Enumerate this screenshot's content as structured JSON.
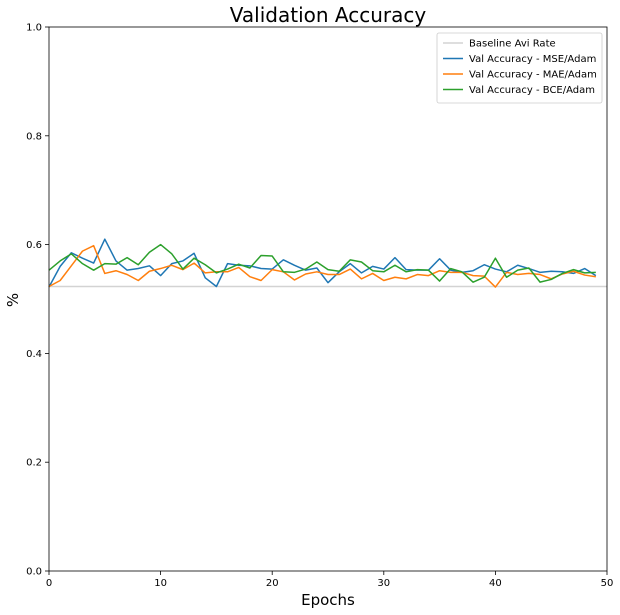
{
  "chart_data": {
    "type": "line",
    "title": "Validation Accuracy",
    "xlabel": "Epochs",
    "ylabel": "%",
    "xlim": [
      0,
      50
    ],
    "ylim": [
      0.0,
      1.0
    ],
    "xticks": [
      0,
      10,
      20,
      30,
      40,
      50
    ],
    "yticks": [
      0.0,
      0.2,
      0.4,
      0.6,
      0.8,
      1.0
    ],
    "grid": false,
    "legend_position": "top-right",
    "baseline": {
      "name": "Baseline Avi Rate",
      "value": 0.523,
      "color": "#d3d3d3"
    },
    "x": [
      0,
      1,
      2,
      3,
      4,
      5,
      6,
      7,
      8,
      9,
      10,
      11,
      12,
      13,
      14,
      15,
      16,
      17,
      18,
      19,
      20,
      21,
      22,
      23,
      24,
      25,
      26,
      27,
      28,
      29,
      30,
      31,
      32,
      33,
      34,
      35,
      36,
      37,
      38,
      39,
      40,
      41,
      42,
      43,
      44,
      45,
      46,
      47,
      48,
      49
    ],
    "series": [
      {
        "name": "Val Accuracy - MSE/Adam",
        "color": "#1f77b4",
        "values": [
          0.522,
          0.56,
          0.585,
          0.575,
          0.566,
          0.61,
          0.57,
          0.553,
          0.556,
          0.561,
          0.543,
          0.565,
          0.57,
          0.584,
          0.539,
          0.523,
          0.565,
          0.562,
          0.561,
          0.556,
          0.555,
          0.572,
          0.562,
          0.553,
          0.557,
          0.53,
          0.55,
          0.565,
          0.548,
          0.56,
          0.555,
          0.576,
          0.554,
          0.553,
          0.553,
          0.574,
          0.553,
          0.549,
          0.552,
          0.563,
          0.555,
          0.55,
          0.562,
          0.556,
          0.549,
          0.551,
          0.55,
          0.547,
          0.556,
          0.543
        ]
      },
      {
        "name": "Val Accuracy - MAE/Adam",
        "color": "#ff7f0e",
        "values": [
          0.523,
          0.534,
          0.561,
          0.588,
          0.598,
          0.547,
          0.552,
          0.545,
          0.534,
          0.551,
          0.556,
          0.562,
          0.554,
          0.566,
          0.548,
          0.55,
          0.55,
          0.558,
          0.541,
          0.534,
          0.554,
          0.55,
          0.535,
          0.546,
          0.55,
          0.545,
          0.545,
          0.555,
          0.537,
          0.547,
          0.534,
          0.54,
          0.537,
          0.545,
          0.543,
          0.552,
          0.549,
          0.549,
          0.543,
          0.542,
          0.522,
          0.549,
          0.545,
          0.547,
          0.545,
          0.537,
          0.546,
          0.551,
          0.544,
          0.541
        ]
      },
      {
        "name": "Val Accuracy - BCE/Adam",
        "color": "#2ca02c",
        "values": [
          0.553,
          0.57,
          0.583,
          0.565,
          0.553,
          0.565,
          0.564,
          0.576,
          0.563,
          0.586,
          0.6,
          0.583,
          0.555,
          0.575,
          0.563,
          0.548,
          0.555,
          0.564,
          0.557,
          0.58,
          0.579,
          0.55,
          0.549,
          0.555,
          0.568,
          0.554,
          0.551,
          0.572,
          0.568,
          0.552,
          0.55,
          0.562,
          0.55,
          0.554,
          0.553,
          0.533,
          0.556,
          0.55,
          0.531,
          0.54,
          0.575,
          0.54,
          0.553,
          0.557,
          0.531,
          0.536,
          0.547,
          0.554,
          0.548,
          0.549
        ]
      }
    ]
  }
}
